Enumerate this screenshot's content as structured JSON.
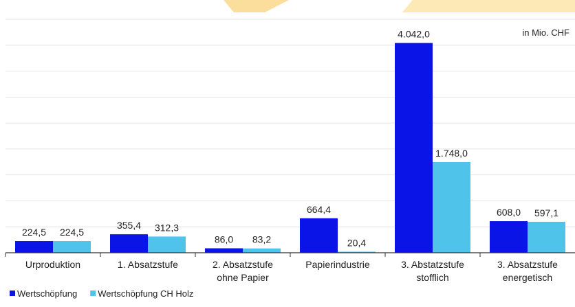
{
  "chart_data": {
    "type": "bar",
    "categories": [
      [
        "Urproduktion"
      ],
      [
        "1. Absatzstufe"
      ],
      [
        "2. Absatzstufe",
        "ohne Papier"
      ],
      [
        "Papierindustrie"
      ],
      [
        "3. Abstatzstufe",
        "stofflich"
      ],
      [
        "3. Absatzstufe",
        "energetisch"
      ]
    ],
    "series": [
      {
        "name": "Wertschöpfung",
        "color": "#0a14e6",
        "values": [
          224.5,
          355.4,
          86.0,
          664.4,
          4042.0,
          608.0
        ],
        "labels": [
          "224,5",
          "355,4",
          "86,0",
          "664,4",
          "4.042,0",
          "608,0"
        ]
      },
      {
        "name": "Wertschöpfung CH Holz",
        "color": "#4fc3ea",
        "values": [
          224.5,
          312.3,
          83.2,
          20.4,
          1748.0,
          597.1
        ],
        "labels": [
          "224,5",
          "312,3",
          "83,2",
          "20,4",
          "1.748,0",
          "597,1"
        ]
      }
    ],
    "unit_note": "in Mio. CHF",
    "ylim": [
      0,
      4500
    ],
    "grid": true,
    "legend_position": "bottom-left"
  }
}
